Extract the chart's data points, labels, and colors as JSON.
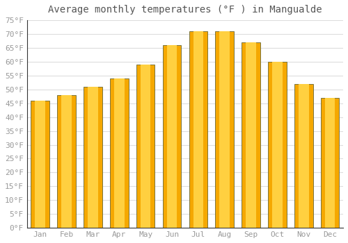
{
  "title": "Average monthly temperatures (°F ) in Mangualde",
  "months": [
    "Jan",
    "Feb",
    "Mar",
    "Apr",
    "May",
    "Jun",
    "Jul",
    "Aug",
    "Sep",
    "Oct",
    "Nov",
    "Dec"
  ],
  "values": [
    46,
    48,
    51,
    54,
    59,
    66,
    71,
    71,
    67,
    60,
    52,
    47
  ],
  "bar_color_outer": "#F5A800",
  "bar_color_inner": "#FFD040",
  "bar_edge_color": "#666633",
  "ylim": [
    0,
    75
  ],
  "yticks": [
    0,
    5,
    10,
    15,
    20,
    25,
    30,
    35,
    40,
    45,
    50,
    55,
    60,
    65,
    70,
    75
  ],
  "ytick_labels": [
    "0°F",
    "5°F",
    "10°F",
    "15°F",
    "20°F",
    "25°F",
    "30°F",
    "35°F",
    "40°F",
    "45°F",
    "50°F",
    "55°F",
    "60°F",
    "65°F",
    "70°F",
    "75°F"
  ],
  "background_color": "#FFFFFF",
  "plot_bg_color": "#FFFFFF",
  "grid_color": "#DDDDDD",
  "title_fontsize": 10,
  "tick_fontsize": 8,
  "tick_color": "#999999",
  "spine_color": "#333333"
}
